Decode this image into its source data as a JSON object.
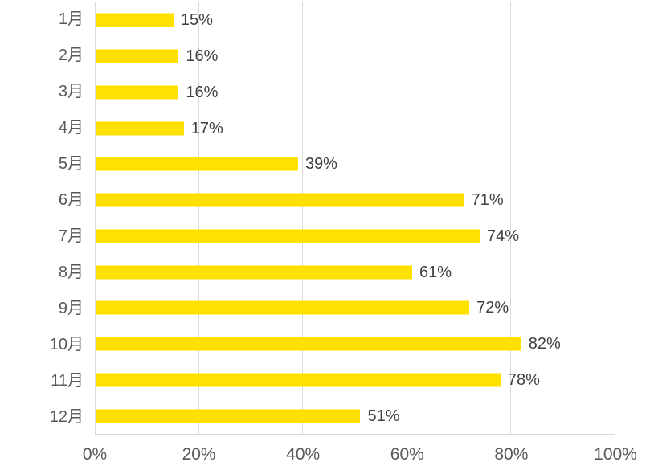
{
  "colors": {
    "bar": "#ffe100",
    "gridline": "#d9d9d9",
    "plot_border": "#d9d9d9",
    "axis_label": "#595959",
    "data_label": "#404040",
    "background": "#ffffff"
  },
  "chart_data": {
    "type": "bar",
    "orientation": "horizontal",
    "title": "",
    "xlabel": "",
    "ylabel": "",
    "legend": false,
    "grid": true,
    "xlim": [
      0,
      100
    ],
    "categories": [
      "1月",
      "2月",
      "3月",
      "4月",
      "5月",
      "6月",
      "7月",
      "8月",
      "9月",
      "10月",
      "11月",
      "12月"
    ],
    "values": [
      15,
      16,
      16,
      17,
      39,
      71,
      74,
      61,
      72,
      82,
      78,
      51
    ],
    "value_labels": [
      "15%",
      "16%",
      "16%",
      "17%",
      "39%",
      "71%",
      "74%",
      "61%",
      "72%",
      "82%",
      "78%",
      "51%"
    ],
    "x_tick_values": [
      0,
      20,
      40,
      60,
      80,
      100
    ],
    "x_tick_labels": [
      "0%",
      "20%",
      "40%",
      "60%",
      "80%",
      "100%"
    ]
  }
}
